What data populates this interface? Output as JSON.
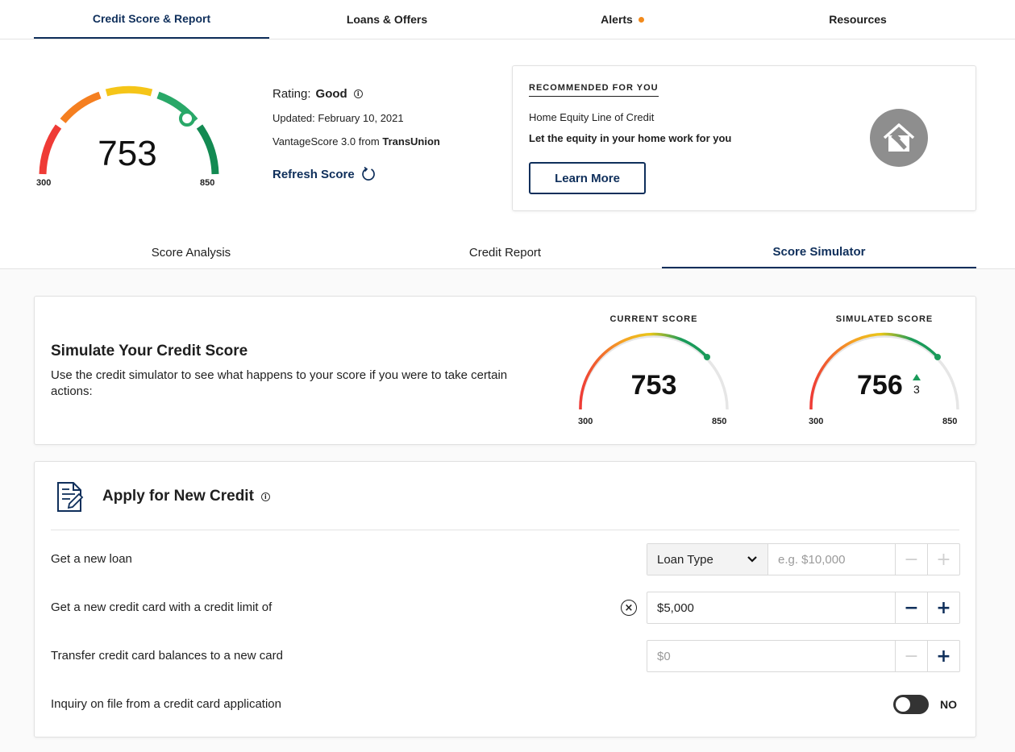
{
  "top_nav": {
    "tabs": [
      {
        "label": "Credit Score & Report"
      },
      {
        "label": "Loans & Offers"
      },
      {
        "label": "Alerts"
      },
      {
        "label": "Resources"
      }
    ]
  },
  "score": {
    "value": "753",
    "min": "300",
    "max": "850",
    "rating_label": "Rating:",
    "rating": "Good",
    "updated": "Updated: February 10, 2021",
    "model_prefix": "VantageScore 3.0 from",
    "bureau": "TransUnion",
    "refresh_label": "Refresh Score"
  },
  "recommended": {
    "heading": "RECOMMENDED FOR YOU",
    "product": "Home Equity Line of Credit",
    "tagline": "Let the equity in your home work for you",
    "button": "Learn More"
  },
  "sub_tabs": [
    {
      "label": "Score Analysis"
    },
    {
      "label": "Credit Report"
    },
    {
      "label": "Score Simulator"
    }
  ],
  "simulator": {
    "title": "Simulate Your Credit Score",
    "description": "Use the credit simulator to see what happens to your score if you were to take certain actions:",
    "current": {
      "caption": "CURRENT SCORE",
      "value": "753",
      "min": "300",
      "max": "850"
    },
    "simulated": {
      "caption": "SIMULATED SCORE",
      "value": "756",
      "change": "3",
      "min": "300",
      "max": "850"
    }
  },
  "apply": {
    "title": "Apply for New Credit",
    "rows": [
      {
        "label": "Get a new loan",
        "select": "Loan Type",
        "placeholder": "e.g. $10,000"
      },
      {
        "label": "Get a new credit card with a credit limit of",
        "value": "$5,000"
      },
      {
        "label": "Transfer credit card balances to a new card",
        "placeholder": "$0"
      },
      {
        "label": "Inquiry on file from a credit card application",
        "toggle": "NO"
      }
    ]
  },
  "colors": {
    "brand": "#0f2f5b",
    "alert": "#f28a1c",
    "green": "#1a9b5a"
  }
}
